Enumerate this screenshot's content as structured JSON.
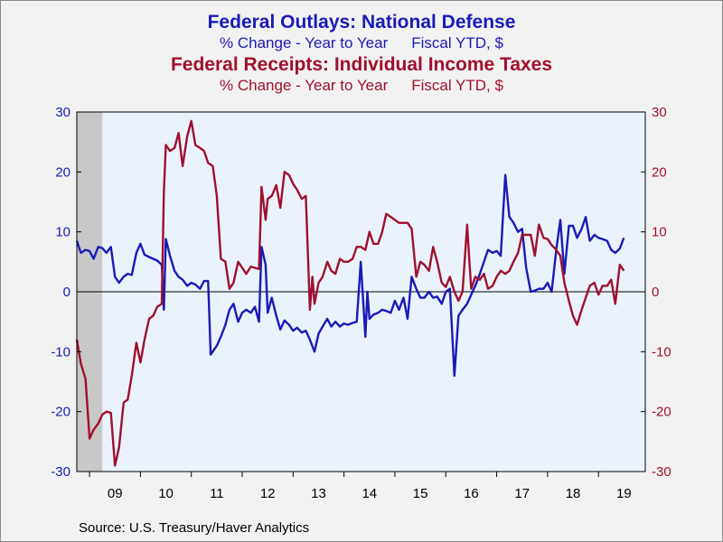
{
  "chart_data": {
    "type": "line",
    "titles": [
      {
        "title": "Federal Outlays: National Defense",
        "subtitle_left": "% Change - Year to Year",
        "subtitle_right": "Fiscal YTD, $"
      },
      {
        "title": "Federal Receipts: Individual Income Taxes",
        "subtitle_left": "% Change - Year to Year",
        "subtitle_right": "Fiscal YTD, $"
      }
    ],
    "source": "Source:  U.S. Treasury/Haver Analytics",
    "x_tick_labels": [
      "09",
      "10",
      "11",
      "12",
      "13",
      "14",
      "15",
      "16",
      "17",
      "18",
      "19"
    ],
    "x_range": [
      2008.75,
      2019.92
    ],
    "y_left": {
      "ylim": [
        -30,
        30
      ],
      "ticks": [
        30,
        20,
        10,
        0,
        -10,
        -20,
        -30
      ]
    },
    "y_right": {
      "ylim": [
        -30,
        30
      ],
      "ticks": [
        30,
        20,
        10,
        0,
        -10,
        -20,
        -30
      ]
    },
    "recession_shading": [
      2008.75,
      2009.25
    ],
    "grid": false,
    "zero_line": true,
    "series": [
      {
        "color": "#1a1ab8",
        "points": [
          [
            2008.75,
            8.5
          ],
          [
            2008.83,
            6.5
          ],
          [
            2008.92,
            7.0
          ],
          [
            2009.0,
            6.8
          ],
          [
            2009.08,
            5.5
          ],
          [
            2009.17,
            7.5
          ],
          [
            2009.25,
            7.3
          ],
          [
            2009.33,
            6.5
          ],
          [
            2009.42,
            7.5
          ],
          [
            2009.5,
            2.5
          ],
          [
            2009.58,
            1.5
          ],
          [
            2009.67,
            2.5
          ],
          [
            2009.75,
            3.0
          ],
          [
            2009.83,
            2.8
          ],
          [
            2009.92,
            6.5
          ],
          [
            2010.0,
            8.0
          ],
          [
            2010.08,
            6.2
          ],
          [
            2010.17,
            5.8
          ],
          [
            2010.25,
            5.5
          ],
          [
            2010.33,
            5.2
          ],
          [
            2010.42,
            4.5
          ],
          [
            2010.46,
            -3.0
          ],
          [
            2010.5,
            8.8
          ],
          [
            2010.58,
            6.0
          ],
          [
            2010.67,
            3.5
          ],
          [
            2010.75,
            2.5
          ],
          [
            2010.83,
            2.0
          ],
          [
            2010.92,
            1.0
          ],
          [
            2011.0,
            1.5
          ],
          [
            2011.08,
            1.2
          ],
          [
            2011.17,
            0.5
          ],
          [
            2011.25,
            1.8
          ],
          [
            2011.33,
            1.8
          ],
          [
            2011.38,
            -10.5
          ],
          [
            2011.5,
            -9.0
          ],
          [
            2011.58,
            -7.5
          ],
          [
            2011.67,
            -5.5
          ],
          [
            2011.75,
            -3.0
          ],
          [
            2011.83,
            -2.0
          ],
          [
            2011.92,
            -5.0
          ],
          [
            2012.0,
            -3.5
          ],
          [
            2012.08,
            -3.0
          ],
          [
            2012.17,
            -3.5
          ],
          [
            2012.25,
            -2.5
          ],
          [
            2012.33,
            -5.0
          ],
          [
            2012.38,
            7.5
          ],
          [
            2012.46,
            4.5
          ],
          [
            2012.5,
            -3.5
          ],
          [
            2012.58,
            -1.0
          ],
          [
            2012.67,
            -4.0
          ],
          [
            2012.75,
            -6.3
          ],
          [
            2012.83,
            -4.8
          ],
          [
            2012.92,
            -5.5
          ],
          [
            2013.0,
            -6.5
          ],
          [
            2013.08,
            -6.0
          ],
          [
            2013.17,
            -6.8
          ],
          [
            2013.25,
            -6.5
          ],
          [
            2013.33,
            -8.0
          ],
          [
            2013.42,
            -10.0
          ],
          [
            2013.5,
            -7.0
          ],
          [
            2013.58,
            -5.8
          ],
          [
            2013.67,
            -4.5
          ],
          [
            2013.75,
            -5.8
          ],
          [
            2013.83,
            -5.0
          ],
          [
            2013.92,
            -5.8
          ],
          [
            2014.0,
            -5.3
          ],
          [
            2014.08,
            -5.5
          ],
          [
            2014.17,
            -5.2
          ],
          [
            2014.25,
            -5.0
          ],
          [
            2014.33,
            5.0
          ],
          [
            2014.42,
            -7.5
          ],
          [
            2014.46,
            0.0
          ],
          [
            2014.5,
            -4.5
          ],
          [
            2014.58,
            -3.8
          ],
          [
            2014.67,
            -3.5
          ],
          [
            2014.75,
            -3.0
          ],
          [
            2014.83,
            -3.2
          ],
          [
            2014.92,
            -3.5
          ],
          [
            2015.0,
            -1.5
          ],
          [
            2015.08,
            -3.0
          ],
          [
            2015.17,
            -1.0
          ],
          [
            2015.25,
            -4.5
          ],
          [
            2015.33,
            2.5
          ],
          [
            2015.42,
            0.5
          ],
          [
            2015.5,
            -1.0
          ],
          [
            2015.58,
            -1.0
          ],
          [
            2015.67,
            0.0
          ],
          [
            2015.75,
            -1.0
          ],
          [
            2015.83,
            -0.8
          ],
          [
            2015.92,
            -2.0
          ],
          [
            2016.0,
            0.0
          ],
          [
            2016.08,
            0.5
          ],
          [
            2016.17,
            -14.0
          ],
          [
            2016.25,
            -4.0
          ],
          [
            2016.33,
            -3.0
          ],
          [
            2016.42,
            -2.0
          ],
          [
            2016.5,
            -0.5
          ],
          [
            2016.58,
            1.0
          ],
          [
            2016.67,
            3.0
          ],
          [
            2016.75,
            5.0
          ],
          [
            2016.83,
            7.0
          ],
          [
            2016.92,
            6.5
          ],
          [
            2017.0,
            6.8
          ],
          [
            2017.08,
            6.0
          ],
          [
            2017.17,
            19.5
          ],
          [
            2017.25,
            12.5
          ],
          [
            2017.33,
            11.5
          ],
          [
            2017.42,
            10.0
          ],
          [
            2017.5,
            10.5
          ],
          [
            2017.58,
            4.0
          ],
          [
            2017.67,
            0.0
          ],
          [
            2017.75,
            0.2
          ],
          [
            2017.83,
            0.5
          ],
          [
            2017.92,
            0.5
          ],
          [
            2018.0,
            1.5
          ],
          [
            2018.08,
            0.0
          ],
          [
            2018.17,
            7.0
          ],
          [
            2018.25,
            12.0
          ],
          [
            2018.33,
            3.0
          ],
          [
            2018.42,
            11.0
          ],
          [
            2018.5,
            11.0
          ],
          [
            2018.58,
            9.0
          ],
          [
            2018.67,
            10.5
          ],
          [
            2018.75,
            12.5
          ],
          [
            2018.83,
            8.5
          ],
          [
            2018.92,
            9.5
          ],
          [
            2019.0,
            9.0
          ],
          [
            2019.08,
            8.8
          ],
          [
            2019.17,
            8.5
          ],
          [
            2019.25,
            7.0
          ],
          [
            2019.33,
            6.5
          ],
          [
            2019.42,
            7.2
          ],
          [
            2019.5,
            9.0
          ]
        ]
      },
      {
        "color": "#a0102e",
        "points": [
          [
            2008.75,
            -8.0
          ],
          [
            2008.83,
            -12.0
          ],
          [
            2008.92,
            -14.5
          ],
          [
            2009.0,
            -24.5
          ],
          [
            2009.08,
            -23.0
          ],
          [
            2009.17,
            -22.0
          ],
          [
            2009.25,
            -20.5
          ],
          [
            2009.33,
            -20.0
          ],
          [
            2009.42,
            -20.2
          ],
          [
            2009.5,
            -29.0
          ],
          [
            2009.58,
            -26.0
          ],
          [
            2009.67,
            -18.5
          ],
          [
            2009.75,
            -18.0
          ],
          [
            2009.83,
            -14.0
          ],
          [
            2009.92,
            -8.5
          ],
          [
            2010.0,
            -11.8
          ],
          [
            2010.08,
            -8.0
          ],
          [
            2010.17,
            -4.5
          ],
          [
            2010.25,
            -4.0
          ],
          [
            2010.33,
            -2.5
          ],
          [
            2010.42,
            -2.0
          ],
          [
            2010.46,
            16.5
          ],
          [
            2010.5,
            24.5
          ],
          [
            2010.58,
            23.5
          ],
          [
            2010.67,
            24.0
          ],
          [
            2010.75,
            26.5
          ],
          [
            2010.83,
            21.0
          ],
          [
            2010.92,
            26.0
          ],
          [
            2011.0,
            28.5
          ],
          [
            2011.08,
            24.5
          ],
          [
            2011.17,
            24.0
          ],
          [
            2011.25,
            23.5
          ],
          [
            2011.33,
            21.5
          ],
          [
            2011.42,
            21.0
          ],
          [
            2011.5,
            16.0
          ],
          [
            2011.58,
            5.5
          ],
          [
            2011.67,
            5.0
          ],
          [
            2011.75,
            0.5
          ],
          [
            2011.83,
            1.5
          ],
          [
            2011.92,
            5.0
          ],
          [
            2012.0,
            4.0
          ],
          [
            2012.08,
            3.0
          ],
          [
            2012.17,
            4.2
          ],
          [
            2012.25,
            4.0
          ],
          [
            2012.33,
            3.8
          ],
          [
            2012.38,
            17.5
          ],
          [
            2012.46,
            12.0
          ],
          [
            2012.5,
            15.5
          ],
          [
            2012.58,
            16.0
          ],
          [
            2012.67,
            17.8
          ],
          [
            2012.75,
            14.0
          ],
          [
            2012.83,
            20.0
          ],
          [
            2012.92,
            19.5
          ],
          [
            2013.0,
            18.0
          ],
          [
            2013.08,
            17.0
          ],
          [
            2013.17,
            15.5
          ],
          [
            2013.25,
            16.0
          ],
          [
            2013.33,
            -3.0
          ],
          [
            2013.38,
            2.5
          ],
          [
            2013.42,
            -2.0
          ],
          [
            2013.5,
            1.5
          ],
          [
            2013.58,
            2.5
          ],
          [
            2013.67,
            5.0
          ],
          [
            2013.75,
            3.5
          ],
          [
            2013.83,
            3.0
          ],
          [
            2013.92,
            5.5
          ],
          [
            2014.0,
            5.0
          ],
          [
            2014.08,
            5.0
          ],
          [
            2014.17,
            5.5
          ],
          [
            2014.25,
            7.5
          ],
          [
            2014.33,
            7.5
          ],
          [
            2014.42,
            7.0
          ],
          [
            2014.5,
            10.0
          ],
          [
            2014.58,
            8.0
          ],
          [
            2014.67,
            8.0
          ],
          [
            2014.75,
            10.0
          ],
          [
            2014.83,
            13.0
          ],
          [
            2014.92,
            12.5
          ],
          [
            2015.0,
            12.0
          ],
          [
            2015.08,
            11.5
          ],
          [
            2015.17,
            11.5
          ],
          [
            2015.25,
            11.5
          ],
          [
            2015.33,
            10.5
          ],
          [
            2015.42,
            2.5
          ],
          [
            2015.5,
            5.0
          ],
          [
            2015.58,
            4.5
          ],
          [
            2015.67,
            3.5
          ],
          [
            2015.75,
            7.5
          ],
          [
            2015.83,
            5.0
          ],
          [
            2015.92,
            1.5
          ],
          [
            2016.0,
            0.8
          ],
          [
            2016.08,
            2.5
          ],
          [
            2016.17,
            0.0
          ],
          [
            2016.25,
            -1.5
          ],
          [
            2016.33,
            0.0
          ],
          [
            2016.42,
            11.2
          ],
          [
            2016.46,
            5.5
          ],
          [
            2016.5,
            0.5
          ],
          [
            2016.58,
            2.5
          ],
          [
            2016.67,
            2.0
          ],
          [
            2016.75,
            3.0
          ],
          [
            2016.83,
            0.5
          ],
          [
            2016.92,
            1.0
          ],
          [
            2017.0,
            2.5
          ],
          [
            2017.08,
            3.5
          ],
          [
            2017.17,
            3.0
          ],
          [
            2017.25,
            3.5
          ],
          [
            2017.33,
            5.0
          ],
          [
            2017.42,
            6.5
          ],
          [
            2017.5,
            9.5
          ],
          [
            2017.58,
            9.5
          ],
          [
            2017.67,
            9.5
          ],
          [
            2017.75,
            6.0
          ],
          [
            2017.83,
            11.2
          ],
          [
            2017.92,
            9.0
          ],
          [
            2018.0,
            8.8
          ],
          [
            2018.08,
            7.8
          ],
          [
            2018.17,
            7.0
          ],
          [
            2018.25,
            6.0
          ],
          [
            2018.33,
            1.5
          ],
          [
            2018.42,
            -1.5
          ],
          [
            2018.5,
            -4.0
          ],
          [
            2018.58,
            -5.5
          ],
          [
            2018.67,
            -3.0
          ],
          [
            2018.75,
            -1.0
          ],
          [
            2018.83,
            1.0
          ],
          [
            2018.92,
            1.5
          ],
          [
            2019.0,
            -0.5
          ],
          [
            2019.08,
            1.0
          ],
          [
            2019.17,
            1.0
          ],
          [
            2019.25,
            2.0
          ],
          [
            2019.33,
            -2.0
          ],
          [
            2019.42,
            4.5
          ],
          [
            2019.5,
            3.5
          ]
        ]
      }
    ]
  }
}
